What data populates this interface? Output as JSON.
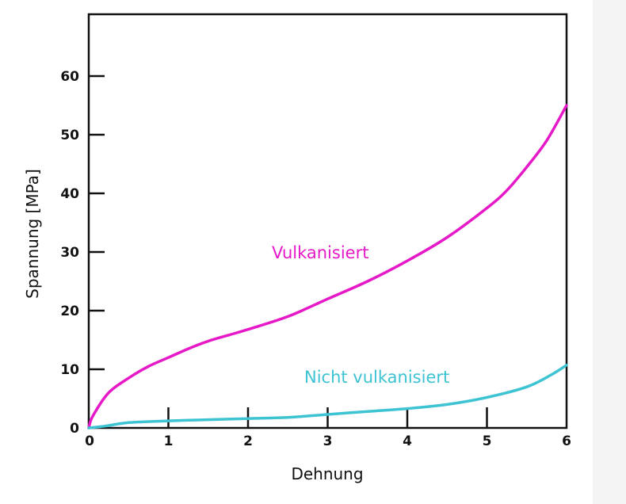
{
  "chart_data": {
    "type": "line",
    "xlabel": "Dehnung",
    "ylabel": "Spannung [MPa]",
    "xlim": [
      0,
      6
    ],
    "ylim": [
      0,
      70
    ],
    "x_ticks": [
      "0",
      "1",
      "2",
      "3",
      "4",
      "5",
      "6"
    ],
    "y_ticks": [
      "0",
      "10",
      "20",
      "30",
      "40",
      "50",
      "60"
    ],
    "series": [
      {
        "name": "Vulkanisiert",
        "color": "#e619c8",
        "x": [
          0,
          0.05,
          0.25,
          0.5,
          0.75,
          1.0,
          1.25,
          1.5,
          1.75,
          2.0,
          2.5,
          3.0,
          3.5,
          4.0,
          4.5,
          5.0,
          5.25,
          5.5,
          5.75,
          6.0
        ],
        "y": [
          0,
          2,
          6,
          8.5,
          10.5,
          12,
          13.5,
          14.8,
          15.8,
          16.8,
          19,
          22,
          25,
          28.5,
          32.5,
          37.5,
          40.5,
          44.5,
          49,
          55
        ]
      },
      {
        "name": "Nicht vulkanisiert",
        "color": "#3ec3d3",
        "x": [
          0,
          0.2,
          0.5,
          1.0,
          1.5,
          2.0,
          2.5,
          3.0,
          3.5,
          4.0,
          4.5,
          5.0,
          5.5,
          5.8,
          6.0
        ],
        "y": [
          0,
          0.3,
          0.9,
          1.2,
          1.4,
          1.6,
          1.8,
          2.3,
          2.8,
          3.3,
          4.0,
          5.2,
          7.0,
          9.0,
          10.7
        ]
      }
    ],
    "annotations": [
      "Vulkanisiert",
      "Nicht vulkanisiert"
    ]
  }
}
